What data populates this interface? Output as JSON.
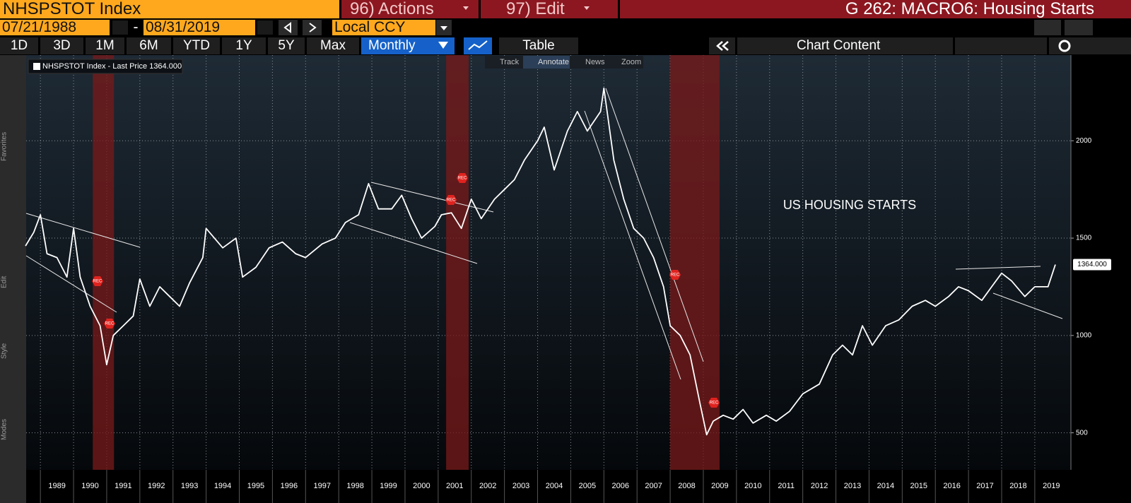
{
  "header": {
    "ticker": "NHSPSTOT Index",
    "actions": "96) Actions",
    "edit": "97) Edit",
    "title": "G 262: MACRO6: Housing Starts"
  },
  "controls": {
    "start_date": "07/21/1988",
    "date_separator": "-",
    "end_date": "08/31/2019",
    "currency": "Local CCY",
    "periods": [
      "1D",
      "3D",
      "1M",
      "6M",
      "YTD",
      "1Y",
      "5Y",
      "Max"
    ],
    "frequency": "Monthly",
    "table": "Table",
    "chart_content": "Chart Content"
  },
  "sidebar_labels": [
    "Favorites",
    "Edit",
    "Style",
    "Modes"
  ],
  "chart_toolbar": [
    "Track",
    "Annotate",
    "News",
    "Zoom"
  ],
  "chart_data": {
    "type": "line",
    "legend": "NHSPSTOT Index - Last Price 1364.000",
    "annotation": "US HOUSING STARTS",
    "last_price_label": "1364.000",
    "recession_marker": "REC",
    "x": [
      1988.55,
      1988.8,
      1989.0,
      1989.2,
      1989.5,
      1989.8,
      1990.0,
      1990.2,
      1990.5,
      1990.8,
      1991.0,
      1991.2,
      1991.5,
      1991.8,
      1992.0,
      1992.3,
      1992.6,
      1992.9,
      1993.2,
      1993.5,
      1993.9,
      1994.0,
      1994.5,
      1994.9,
      1995.1,
      1995.5,
      1995.9,
      1996.3,
      1996.7,
      1997.0,
      1997.5,
      1997.9,
      1998.2,
      1998.6,
      1998.9,
      1999.2,
      1999.6,
      1999.9,
      2000.2,
      2000.5,
      2000.9,
      2001.1,
      2001.4,
      2001.7,
      2002.0,
      2002.3,
      2002.7,
      2003.0,
      2003.3,
      2003.6,
      2004.0,
      2004.2,
      2004.5,
      2004.9,
      2005.2,
      2005.5,
      2005.9,
      2006.0,
      2006.3,
      2006.6,
      2006.9,
      2007.2,
      2007.5,
      2007.8,
      2008.0,
      2008.3,
      2008.6,
      2008.9,
      2009.1,
      2009.3,
      2009.6,
      2009.9,
      2010.2,
      2010.5,
      2010.9,
      2011.2,
      2011.6,
      2012.0,
      2012.5,
      2012.9,
      2013.2,
      2013.5,
      2013.8,
      2014.1,
      2014.5,
      2014.9,
      2015.3,
      2015.7,
      2016.0,
      2016.4,
      2016.7,
      2017.0,
      2017.4,
      2017.7,
      2018.0,
      2018.3,
      2018.7,
      2019.0,
      2019.4,
      2019.62
    ],
    "series": [
      {
        "name": "NHSPSTOT Index",
        "color": "#ffffff",
        "values": [
          1460,
          1530,
          1620,
          1420,
          1400,
          1300,
          1550,
          1300,
          1150,
          1050,
          850,
          1000,
          1050,
          1100,
          1290,
          1150,
          1250,
          1200,
          1150,
          1270,
          1400,
          1550,
          1450,
          1500,
          1300,
          1350,
          1450,
          1480,
          1420,
          1400,
          1470,
          1500,
          1580,
          1620,
          1780,
          1650,
          1650,
          1720,
          1600,
          1500,
          1560,
          1620,
          1630,
          1550,
          1700,
          1600,
          1700,
          1750,
          1800,
          1900,
          2000,
          2070,
          1850,
          2050,
          2150,
          2050,
          2150,
          2270,
          1900,
          1700,
          1550,
          1500,
          1400,
          1250,
          1050,
          1000,
          900,
          650,
          490,
          560,
          590,
          570,
          620,
          550,
          590,
          560,
          610,
          700,
          750,
          900,
          950,
          900,
          1050,
          950,
          1050,
          1080,
          1150,
          1180,
          1150,
          1200,
          1250,
          1230,
          1180,
          1250,
          1320,
          1280,
          1200,
          1250,
          1250,
          1364
        ]
      }
    ],
    "recessions": [
      [
        1990.58,
        1991.22
      ],
      [
        2001.24,
        2001.92
      ],
      [
        2008.0,
        2009.49
      ]
    ],
    "recession_color": "#7a1a1a",
    "xlim": [
      1988.57,
      2020.09
    ],
    "xticks": [
      1989,
      1990,
      1991,
      1992,
      1993,
      1994,
      1995,
      1996,
      1997,
      1998,
      1999,
      2000,
      2001,
      2002,
      2003,
      2004,
      2005,
      2006,
      2007,
      2008,
      2009,
      2010,
      2011,
      2012,
      2013,
      2014,
      2015,
      2016,
      2017,
      2018,
      2019
    ],
    "ylim": [
      310,
      2440
    ],
    "yticks": [
      500,
      1000,
      1500,
      2000
    ],
    "grid": true
  }
}
